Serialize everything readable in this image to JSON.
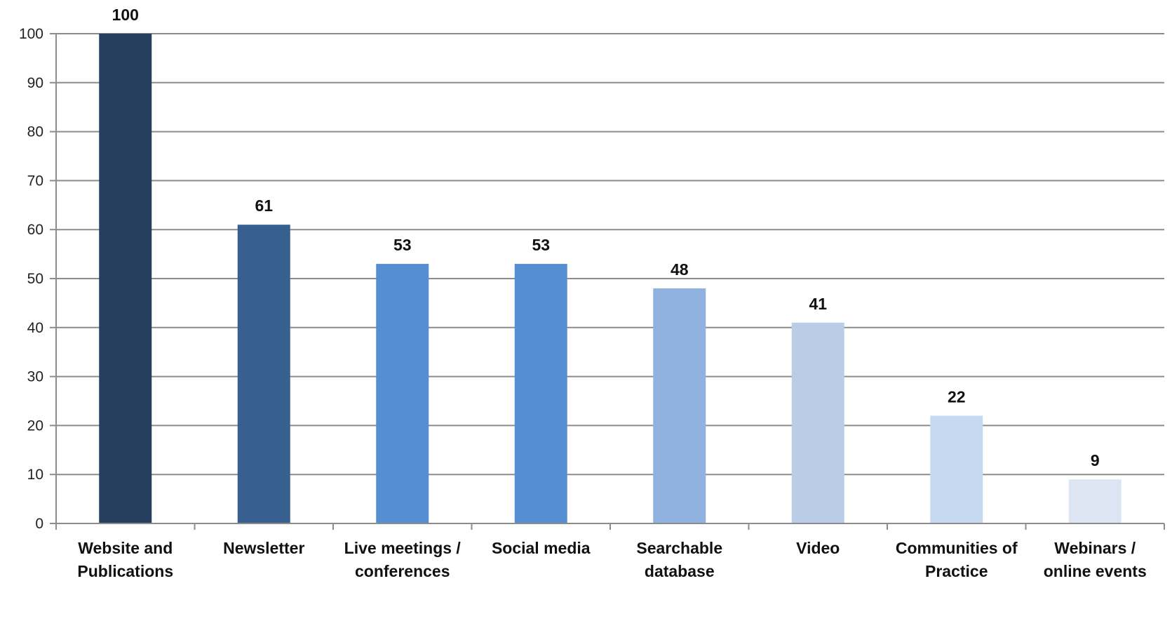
{
  "chart_data": {
    "type": "bar",
    "title": "",
    "xlabel": "",
    "ylabel": "",
    "ylim": [
      0,
      100
    ],
    "yticks": [
      0,
      10,
      20,
      30,
      40,
      50,
      60,
      70,
      80,
      90,
      100
    ],
    "grid": true,
    "categories": [
      [
        "Website and",
        "Publications"
      ],
      [
        "Newsletter"
      ],
      [
        "Live meetings /",
        "conferences"
      ],
      [
        "Social media"
      ],
      [
        "Searchable",
        "database"
      ],
      [
        "Video"
      ],
      [
        "Communities of",
        "Practice"
      ],
      [
        "Webinars /",
        "online events"
      ]
    ],
    "values": [
      100,
      61,
      53,
      53,
      48,
      41,
      22,
      9
    ],
    "data_labels": [
      "100",
      "61",
      "53",
      "53",
      "48",
      "41",
      "22",
      "9"
    ],
    "colors": [
      "#263f5f",
      "#375f8f",
      "#568ed3",
      "#568ed3",
      "#8fb2e1",
      "#b9cde6",
      "#c7d9f0",
      "#dce5f1"
    ]
  }
}
